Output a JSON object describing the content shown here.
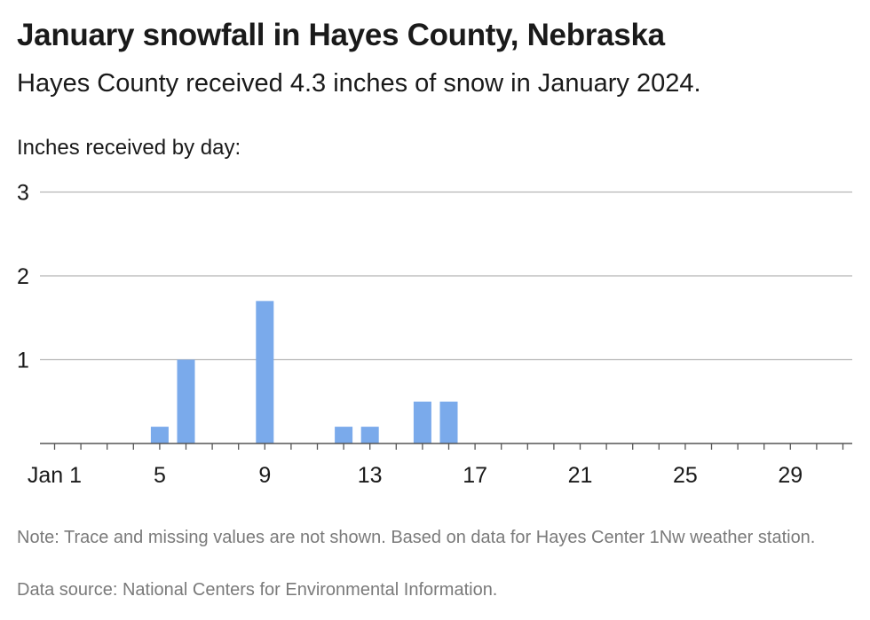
{
  "title": "January snowfall in Hayes County, Nebraska",
  "subtitle": "Hayes County received 4.3 inches of snow in January 2024.",
  "ylabel": "Inches received by day:",
  "note": "Note: Trace and missing values are not shown. Based on data for Hayes Center 1Nw weather station.",
  "source": "Data source: National Centers for Environmental Information.",
  "chart_data": {
    "type": "bar",
    "title": "January snowfall in Hayes County, Nebraska",
    "ylabel": "Inches received by day:",
    "xlabel": "",
    "bar_color": "#7aaaeb",
    "grid": true,
    "ylim": [
      0,
      3
    ],
    "yticks": [
      1,
      2,
      3
    ],
    "xticks": [
      {
        "day": 1,
        "label": "Jan 1"
      },
      {
        "day": 5,
        "label": "5"
      },
      {
        "day": 9,
        "label": "9"
      },
      {
        "day": 13,
        "label": "13"
      },
      {
        "day": 17,
        "label": "17"
      },
      {
        "day": 21,
        "label": "21"
      },
      {
        "day": 25,
        "label": "25"
      },
      {
        "day": 29,
        "label": "29"
      }
    ],
    "days": [
      1,
      2,
      3,
      4,
      5,
      6,
      7,
      8,
      9,
      10,
      11,
      12,
      13,
      14,
      15,
      16,
      17,
      18,
      19,
      20,
      21,
      22,
      23,
      24,
      25,
      26,
      27,
      28,
      29,
      30,
      31
    ],
    "values": [
      0,
      0,
      0,
      0,
      0.2,
      1,
      0,
      0,
      1.7,
      0,
      0,
      0.2,
      0.2,
      0,
      0.5,
      0.5,
      0,
      0,
      0,
      0,
      0,
      0,
      0,
      0,
      0,
      0,
      0,
      0,
      0,
      0,
      0
    ]
  }
}
